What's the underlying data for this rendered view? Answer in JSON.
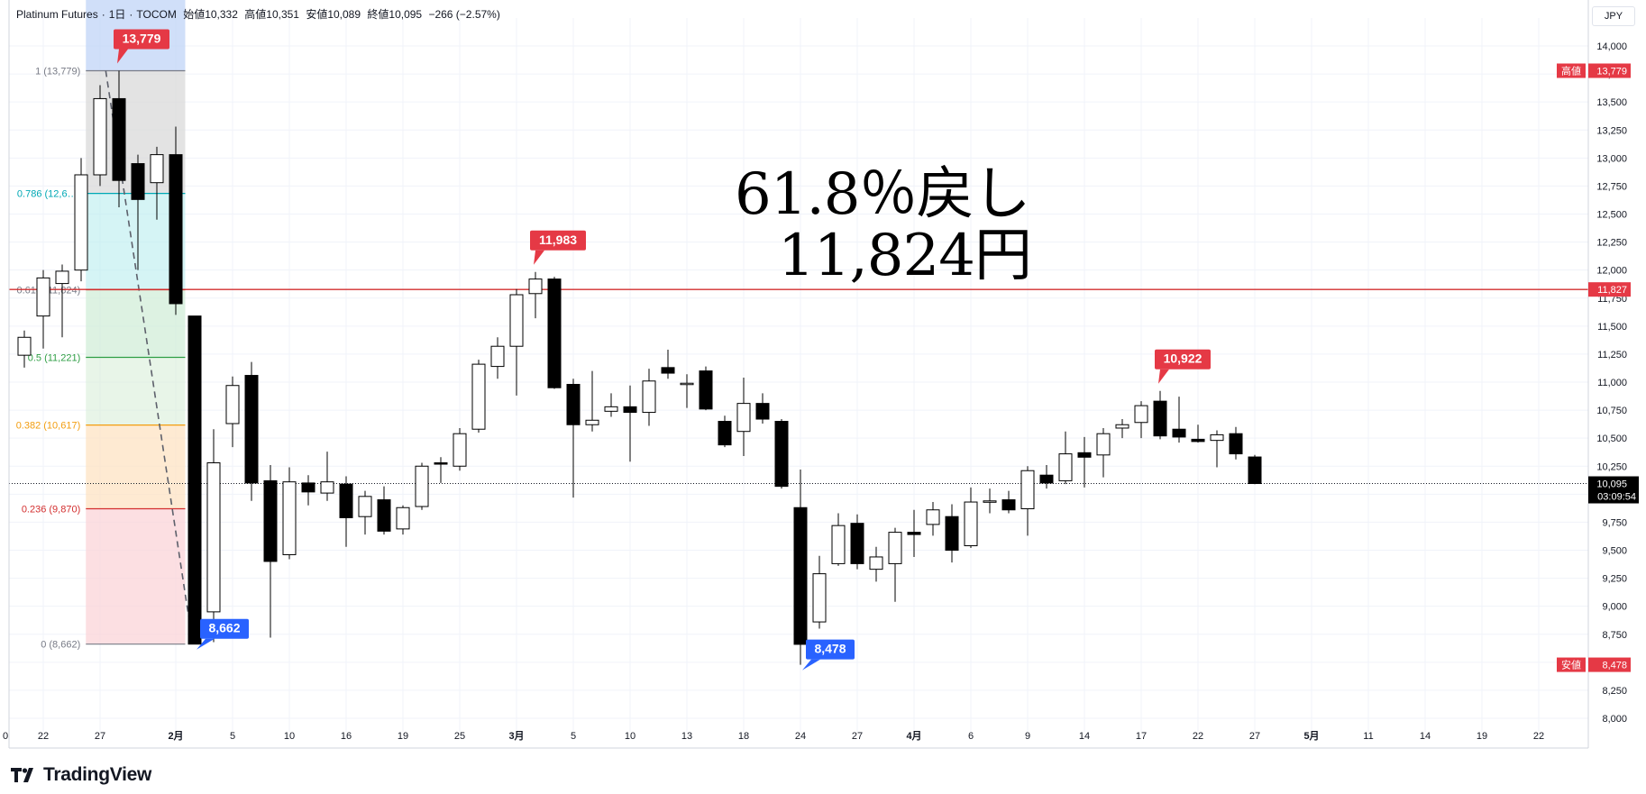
{
  "header": {
    "symbol": "Platinum Futures",
    "interval": "1日",
    "exchange": "TOCOM",
    "open_label": "始値",
    "open": "10,332",
    "high_label": "高値",
    "high": "10,351",
    "low_label": "安値",
    "low": "10,089",
    "close_label": "終値",
    "close": "10,095",
    "change": "−266 (−2.57%)"
  },
  "currency": "JPY",
  "annotation": {
    "line1": "61.8％戻し",
    "line2": "11,824円"
  },
  "logo_text": "TradingView",
  "colors": {
    "up_body": "#ffffff",
    "down_body": "#000000",
    "wick": "#000000",
    "fib_line_red": "#d32f2f",
    "fib_green": "#2e9e44",
    "fib_orange": "#f29d0f",
    "fib_teal": "#00a8b5",
    "marker_red": "#e53945",
    "marker_blue": "#2962ff",
    "price_tag_red": "#e53945",
    "last_price_bg": "#000000"
  },
  "chart_data": {
    "type": "candlestick",
    "ylim": [
      8000,
      14000
    ],
    "y_ticks": [
      "14,000",
      "13,750",
      "13,500",
      "13,250",
      "13,000",
      "12,750",
      "12,500",
      "12,250",
      "12,000",
      "11,750",
      "11,500",
      "11,250",
      "11,000",
      "10,750",
      "10,500",
      "10,250",
      "10,000",
      "9,750",
      "9,500",
      "9,250",
      "9,000",
      "8,750",
      "8,500",
      "8,250",
      "8,000"
    ],
    "x_labels": [
      {
        "label": "0",
        "i": -6
      },
      {
        "label": "22",
        "i": -4
      },
      {
        "label": "27",
        "i": -1
      },
      {
        "label": "2月",
        "i": 3
      },
      {
        "label": "5",
        "i": 6
      },
      {
        "label": "10",
        "i": 9
      },
      {
        "label": "16",
        "i": 12
      },
      {
        "label": "19",
        "i": 15
      },
      {
        "label": "25",
        "i": 18
      },
      {
        "label": "3月",
        "i": 21
      },
      {
        "label": "5",
        "i": 24
      },
      {
        "label": "10",
        "i": 27
      },
      {
        "label": "13",
        "i": 30
      },
      {
        "label": "18",
        "i": 33
      },
      {
        "label": "24",
        "i": 36
      },
      {
        "label": "27",
        "i": 39
      },
      {
        "label": "4月",
        "i": 42
      },
      {
        "label": "6",
        "i": 45
      },
      {
        "label": "9",
        "i": 48
      },
      {
        "label": "14",
        "i": 51
      },
      {
        "label": "17",
        "i": 54
      },
      {
        "label": "22",
        "i": 57
      },
      {
        "label": "27",
        "i": 60
      },
      {
        "label": "5月",
        "i": 63
      },
      {
        "label": "11",
        "i": 66
      },
      {
        "label": "14",
        "i": 69
      },
      {
        "label": "19",
        "i": 72
      },
      {
        "label": "22",
        "i": 75
      }
    ],
    "candles": [
      {
        "i": -5,
        "o": 11240,
        "h": 11460,
        "l": 11130,
        "c": 11400
      },
      {
        "i": -4,
        "o": 11590,
        "h": 12000,
        "l": 11300,
        "c": 11930
      },
      {
        "i": -3,
        "o": 11880,
        "h": 12050,
        "l": 11400,
        "c": 11990
      },
      {
        "i": -2,
        "o": 12000,
        "h": 13000,
        "l": 11900,
        "c": 12850
      },
      {
        "i": -1,
        "o": 12850,
        "h": 13650,
        "l": 12750,
        "c": 13530
      },
      {
        "i": 0,
        "o": 13530,
        "h": 13779,
        "l": 12560,
        "c": 12800
      },
      {
        "i": 1,
        "o": 12950,
        "h": 13030,
        "l": 12000,
        "c": 12630
      },
      {
        "i": 2,
        "o": 12780,
        "h": 13100,
        "l": 12450,
        "c": 13030
      },
      {
        "i": 3,
        "o": 13030,
        "h": 13280,
        "l": 11600,
        "c": 11700
      },
      {
        "i": 4,
        "o": 11590,
        "h": 11590,
        "l": 8662,
        "c": 8662
      },
      {
        "i": 5,
        "o": 8950,
        "h": 10580,
        "l": 8680,
        "c": 10280
      },
      {
        "i": 6,
        "o": 10630,
        "h": 11050,
        "l": 10420,
        "c": 10970
      },
      {
        "i": 7,
        "o": 11060,
        "h": 11180,
        "l": 9940,
        "c": 10100
      },
      {
        "i": 8,
        "o": 10120,
        "h": 10260,
        "l": 8720,
        "c": 9400
      },
      {
        "i": 9,
        "o": 9460,
        "h": 10240,
        "l": 9420,
        "c": 10110
      },
      {
        "i": 10,
        "o": 10100,
        "h": 10170,
        "l": 9900,
        "c": 10020
      },
      {
        "i": 11,
        "o": 10010,
        "h": 10380,
        "l": 9940,
        "c": 10110
      },
      {
        "i": 12,
        "o": 10090,
        "h": 10160,
        "l": 9530,
        "c": 9790
      },
      {
        "i": 13,
        "o": 9800,
        "h": 10030,
        "l": 9640,
        "c": 9980
      },
      {
        "i": 14,
        "o": 9950,
        "h": 10070,
        "l": 9640,
        "c": 9670
      },
      {
        "i": 15,
        "o": 9690,
        "h": 9900,
        "l": 9640,
        "c": 9880
      },
      {
        "i": 16,
        "o": 9890,
        "h": 10280,
        "l": 9860,
        "c": 10250
      },
      {
        "i": 17,
        "o": 10280,
        "h": 10330,
        "l": 10100,
        "c": 10270
      },
      {
        "i": 18,
        "o": 10250,
        "h": 10590,
        "l": 10210,
        "c": 10540
      },
      {
        "i": 19,
        "o": 10580,
        "h": 11200,
        "l": 10550,
        "c": 11160
      },
      {
        "i": 20,
        "o": 11140,
        "h": 11400,
        "l": 11030,
        "c": 11320
      },
      {
        "i": 21,
        "o": 11320,
        "h": 11830,
        "l": 10880,
        "c": 11780
      },
      {
        "i": 22,
        "o": 11790,
        "h": 11983,
        "l": 11570,
        "c": 11920
      },
      {
        "i": 23,
        "o": 11920,
        "h": 11940,
        "l": 10940,
        "c": 10950
      },
      {
        "i": 24,
        "o": 10980,
        "h": 11030,
        "l": 9970,
        "c": 10620
      },
      {
        "i": 25,
        "o": 10620,
        "h": 11100,
        "l": 10560,
        "c": 10660
      },
      {
        "i": 26,
        "o": 10740,
        "h": 10900,
        "l": 10690,
        "c": 10780
      },
      {
        "i": 27,
        "o": 10780,
        "h": 10970,
        "l": 10290,
        "c": 10730
      },
      {
        "i": 28,
        "o": 10730,
        "h": 11120,
        "l": 10610,
        "c": 11010
      },
      {
        "i": 29,
        "o": 11130,
        "h": 11290,
        "l": 11030,
        "c": 11080
      },
      {
        "i": 30,
        "o": 10980,
        "h": 11070,
        "l": 10770,
        "c": 10990
      },
      {
        "i": 31,
        "o": 11100,
        "h": 11140,
        "l": 10750,
        "c": 10760
      },
      {
        "i": 32,
        "o": 10650,
        "h": 10700,
        "l": 10420,
        "c": 10440
      },
      {
        "i": 33,
        "o": 10560,
        "h": 11040,
        "l": 10340,
        "c": 10810
      },
      {
        "i": 34,
        "o": 10810,
        "h": 10900,
        "l": 10630,
        "c": 10670
      },
      {
        "i": 35,
        "o": 10650,
        "h": 10670,
        "l": 10050,
        "c": 10070
      },
      {
        "i": 36,
        "o": 9880,
        "h": 10220,
        "l": 8478,
        "c": 8660
      },
      {
        "i": 37,
        "o": 8860,
        "h": 9450,
        "l": 8800,
        "c": 9290
      },
      {
        "i": 38,
        "o": 9380,
        "h": 9830,
        "l": 9360,
        "c": 9720
      },
      {
        "i": 39,
        "o": 9740,
        "h": 9820,
        "l": 9330,
        "c": 9380
      },
      {
        "i": 40,
        "o": 9330,
        "h": 9530,
        "l": 9220,
        "c": 9440
      },
      {
        "i": 41,
        "o": 9380,
        "h": 9700,
        "l": 9040,
        "c": 9660
      },
      {
        "i": 42,
        "o": 9660,
        "h": 9860,
        "l": 9440,
        "c": 9640
      },
      {
        "i": 43,
        "o": 9730,
        "h": 9930,
        "l": 9630,
        "c": 9860
      },
      {
        "i": 44,
        "o": 9800,
        "h": 9910,
        "l": 9390,
        "c": 9500
      },
      {
        "i": 45,
        "o": 9540,
        "h": 10060,
        "l": 9520,
        "c": 9930
      },
      {
        "i": 46,
        "o": 9930,
        "h": 10050,
        "l": 9830,
        "c": 9940
      },
      {
        "i": 47,
        "o": 9950,
        "h": 10030,
        "l": 9830,
        "c": 9860
      },
      {
        "i": 48,
        "o": 9870,
        "h": 10250,
        "l": 9630,
        "c": 10210
      },
      {
        "i": 49,
        "o": 10170,
        "h": 10260,
        "l": 10050,
        "c": 10100
      },
      {
        "i": 50,
        "o": 10120,
        "h": 10560,
        "l": 10090,
        "c": 10360
      },
      {
        "i": 51,
        "o": 10370,
        "h": 10510,
        "l": 10060,
        "c": 10330
      },
      {
        "i": 52,
        "o": 10350,
        "h": 10590,
        "l": 10150,
        "c": 10540
      },
      {
        "i": 53,
        "o": 10590,
        "h": 10670,
        "l": 10500,
        "c": 10620
      },
      {
        "i": 54,
        "o": 10640,
        "h": 10830,
        "l": 10500,
        "c": 10790
      },
      {
        "i": 55,
        "o": 10830,
        "h": 10922,
        "l": 10490,
        "c": 10520
      },
      {
        "i": 56,
        "o": 10580,
        "h": 10870,
        "l": 10460,
        "c": 10510
      },
      {
        "i": 57,
        "o": 10490,
        "h": 10620,
        "l": 10460,
        "c": 10470
      },
      {
        "i": 58,
        "o": 10480,
        "h": 10570,
        "l": 10240,
        "c": 10530
      },
      {
        "i": 59,
        "o": 10540,
        "h": 10600,
        "l": 10310,
        "c": 10360
      },
      {
        "i": 60,
        "o": 10332,
        "h": 10351,
        "l": 10089,
        "c": 10095
      }
    ],
    "fib_levels": [
      {
        "ratio": "1",
        "price": 13779,
        "label": "1 (13,779)"
      },
      {
        "ratio": "0.786",
        "price": 12684,
        "label": "0.786 (12,6…)"
      },
      {
        "ratio": "0.618",
        "price": 11824,
        "label": "0.618 (11,824)"
      },
      {
        "ratio": "0.5",
        "price": 11221,
        "label": "0.5 (11,221)"
      },
      {
        "ratio": "0.382",
        "price": 10617,
        "label": "0.382 (10,617)"
      },
      {
        "ratio": "0.236",
        "price": 9870,
        "label": "0.236 (9,870)"
      },
      {
        "ratio": "0",
        "price": 8662,
        "label": "0 (8,662)"
      }
    ],
    "markers": [
      {
        "i": 0,
        "price": 13779,
        "text": "13,779",
        "kind": "high"
      },
      {
        "i": 22,
        "price": 11983,
        "text": "11,983",
        "kind": "high"
      },
      {
        "i": 55,
        "price": 10922,
        "text": "10,922",
        "kind": "high"
      },
      {
        "i": 4,
        "price": 8662,
        "text": "8,662",
        "kind": "low"
      },
      {
        "i": 36,
        "price": 8478,
        "text": "8,478",
        "kind": "low"
      }
    ],
    "hline": {
      "price": 11827,
      "label": "11,827"
    },
    "axis_tags": [
      {
        "price": 13779,
        "prefix": "高値",
        "value": "13,779"
      },
      {
        "price": 8478,
        "prefix": "安値",
        "value": "8,478"
      }
    ],
    "last_price": {
      "price": 10095,
      "value": "10,095",
      "countdown": "03:09:54"
    }
  }
}
